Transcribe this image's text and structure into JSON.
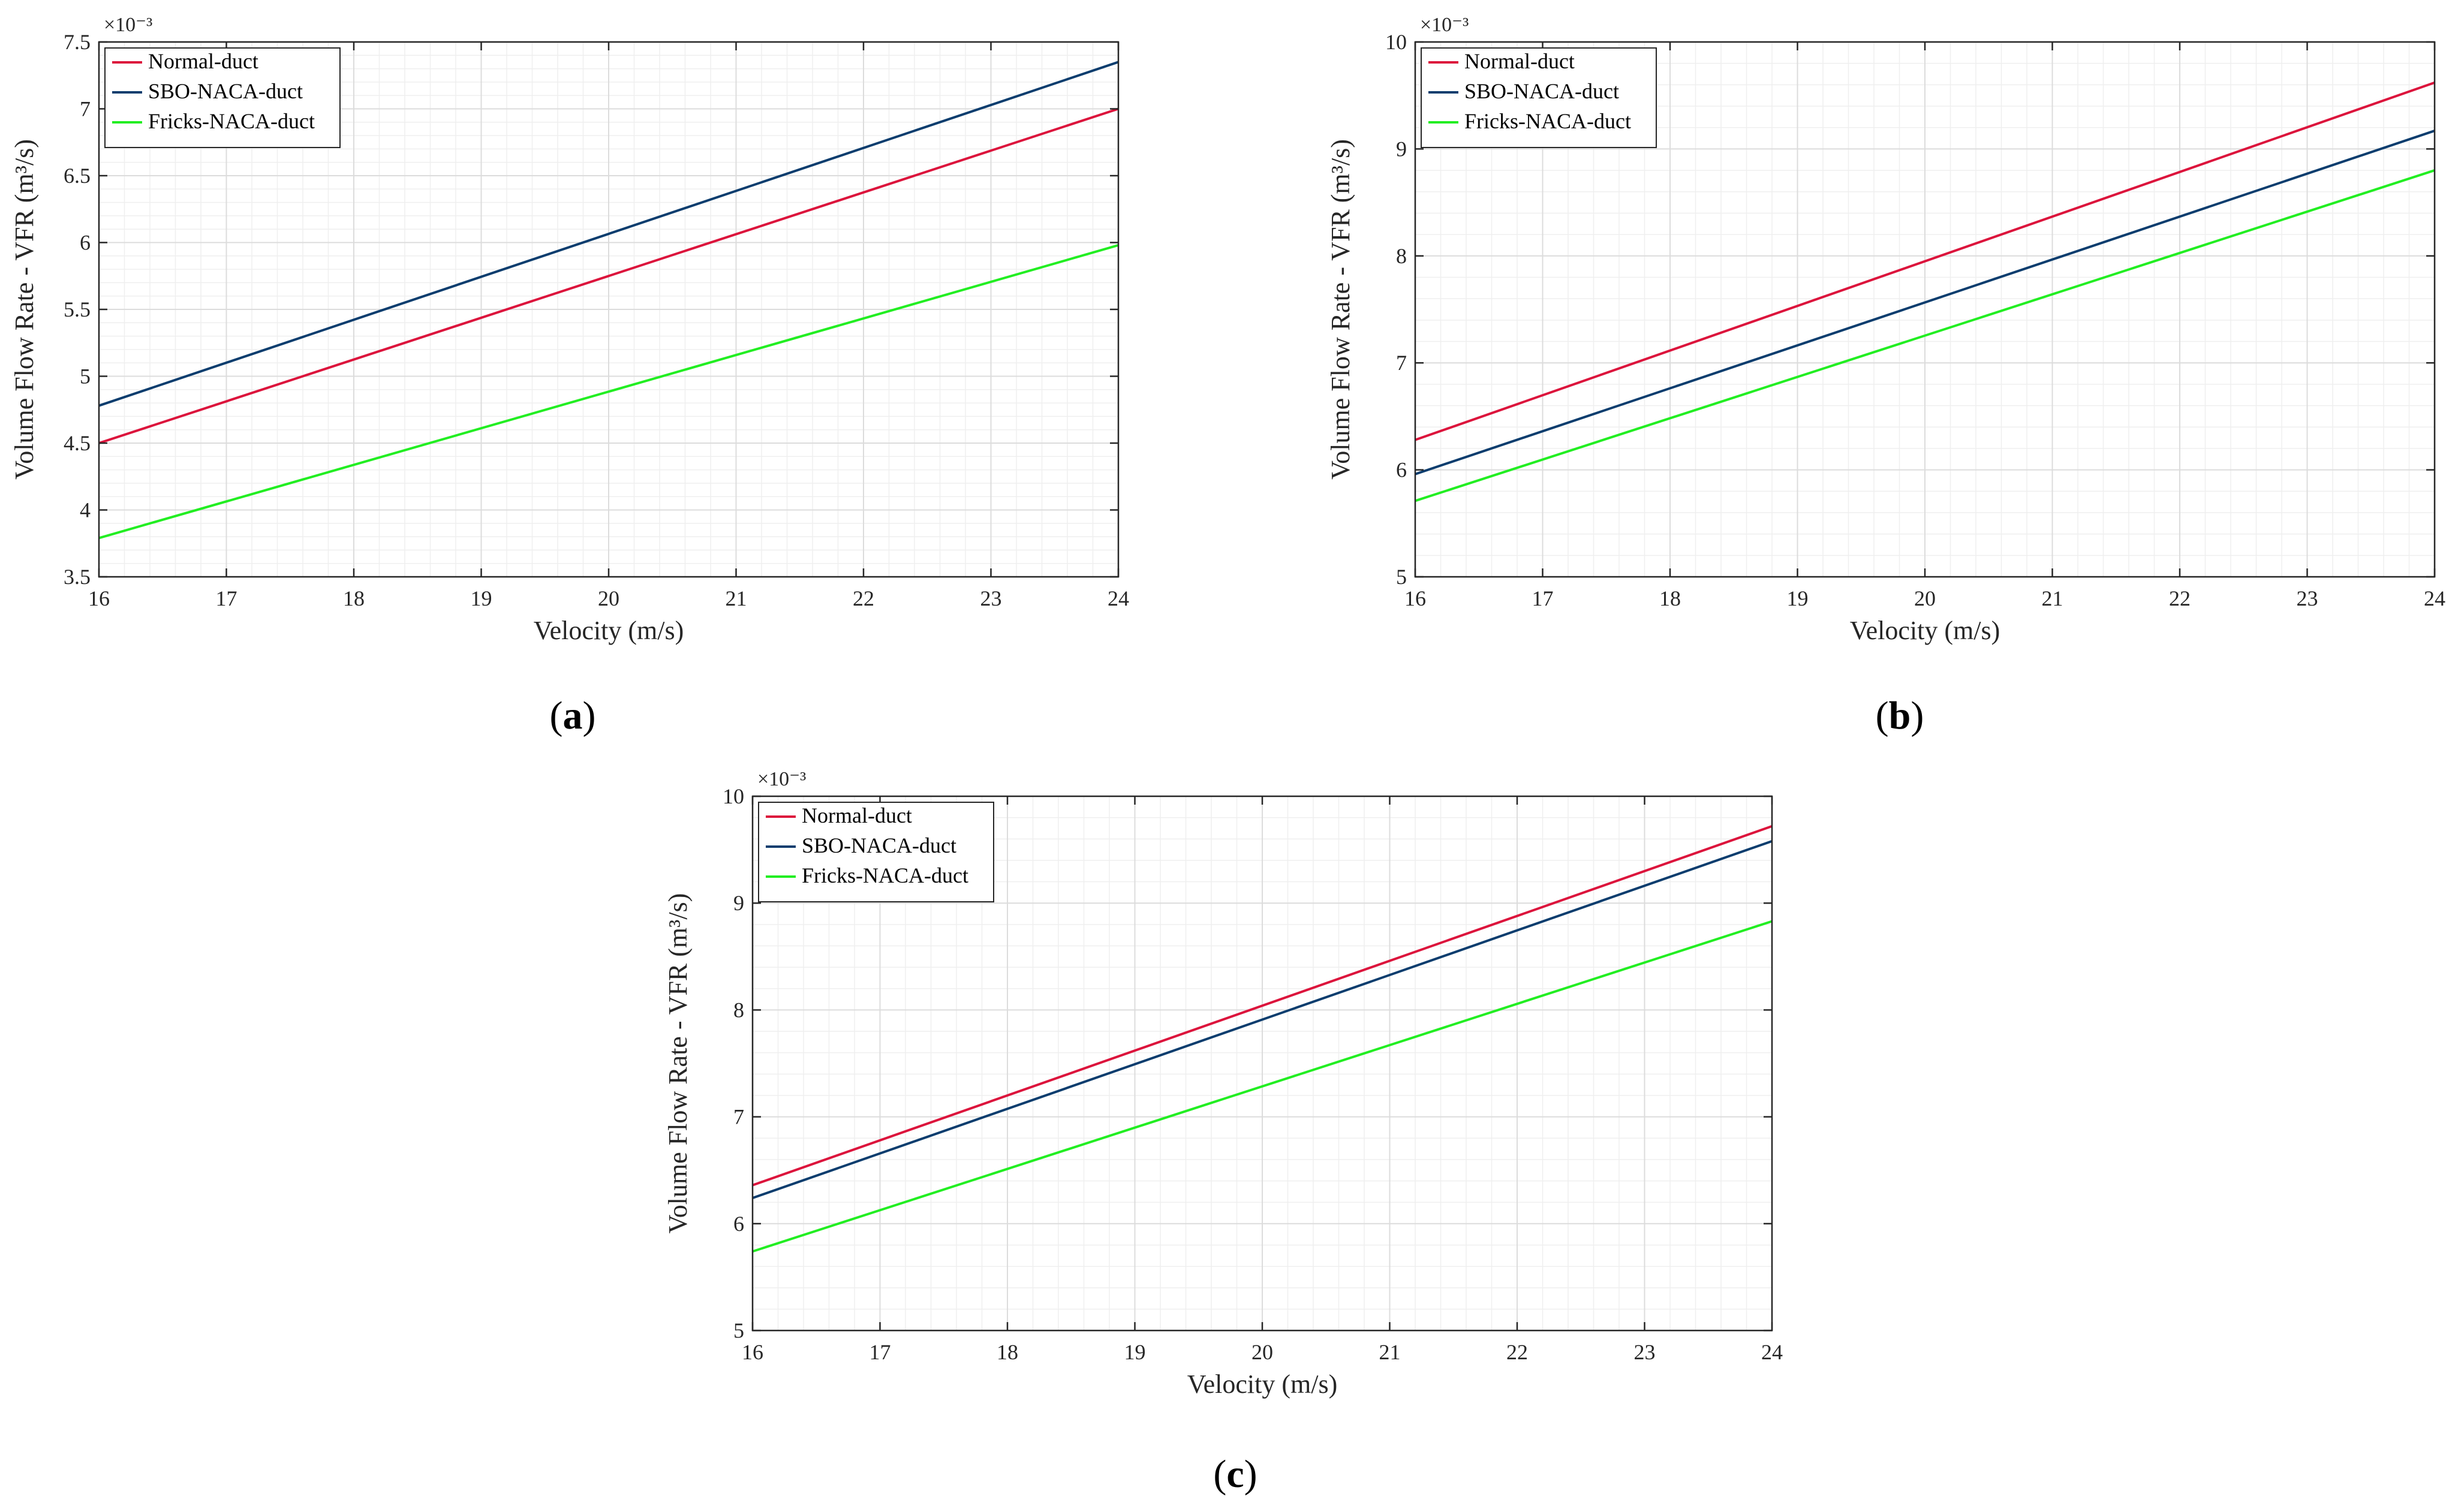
{
  "colors": {
    "normal": "#dc143c",
    "sbo": "#0b3d6e",
    "fricks": "#22ee22",
    "axis": "#262626",
    "grid_major": "#dcdcdc",
    "grid_minor": "#efefef"
  },
  "chart_data": [
    {
      "type": "line",
      "caption": {
        "open": "(",
        "letter": "a",
        "close": ")"
      },
      "xlabel": "Velocity (m/s)",
      "ylabel": "Volume Flow Rate - VFR (m³/s)",
      "multiplier": "×10⁻³",
      "xlim": [
        16,
        24
      ],
      "ylim": [
        3.5,
        7.5
      ],
      "xticks": [
        "16",
        "17",
        "18",
        "19",
        "20",
        "21",
        "22",
        "23",
        "24"
      ],
      "yticks": [
        "3.5",
        "4",
        "4.5",
        "5",
        "5.5",
        "6",
        "6.5",
        "7",
        "7.5"
      ],
      "grid": true,
      "legend_position": "top-left",
      "series": [
        {
          "name": "Normal-duct",
          "color_key": "normal",
          "x": [
            16,
            24
          ],
          "y": [
            4.5,
            7.0
          ]
        },
        {
          "name": "SBO-NACA-duct",
          "color_key": "sbo",
          "x": [
            16,
            24
          ],
          "y": [
            4.78,
            7.35
          ]
        },
        {
          "name": "Fricks-NACA-duct",
          "color_key": "fricks",
          "x": [
            16,
            24
          ],
          "y": [
            3.79,
            5.98
          ]
        }
      ]
    },
    {
      "type": "line",
      "caption": {
        "open": "(",
        "letter": "b",
        "close": ")"
      },
      "xlabel": "Velocity (m/s)",
      "ylabel": "Volume Flow Rate - VFR (m³/s)",
      "multiplier": "×10⁻³",
      "xlim": [
        16,
        24
      ],
      "ylim": [
        5,
        10
      ],
      "xticks": [
        "16",
        "17",
        "18",
        "19",
        "20",
        "21",
        "22",
        "23",
        "24"
      ],
      "yticks": [
        "5",
        "6",
        "7",
        "8",
        "9",
        "10"
      ],
      "grid": true,
      "legend_position": "top-left",
      "series": [
        {
          "name": "Normal-duct",
          "color_key": "normal",
          "x": [
            16,
            24
          ],
          "y": [
            6.28,
            9.62
          ]
        },
        {
          "name": "SBO-NACA-duct",
          "color_key": "sbo",
          "x": [
            16,
            24
          ],
          "y": [
            5.96,
            9.17
          ]
        },
        {
          "name": "Fricks-NACA-duct",
          "color_key": "fricks",
          "x": [
            16,
            24
          ],
          "y": [
            5.71,
            8.8
          ]
        }
      ]
    },
    {
      "type": "line",
      "caption": {
        "open": "(",
        "letter": "c",
        "close": ")"
      },
      "xlabel": "Velocity (m/s)",
      "ylabel": "Volume Flow Rate - VFR (m³/s)",
      "multiplier": "×10⁻³",
      "xlim": [
        16,
        24
      ],
      "ylim": [
        5,
        10
      ],
      "xticks": [
        "16",
        "17",
        "18",
        "19",
        "20",
        "21",
        "22",
        "23",
        "24"
      ],
      "yticks": [
        "5",
        "6",
        "7",
        "8",
        "9",
        "10"
      ],
      "grid": true,
      "legend_position": "top-left",
      "series": [
        {
          "name": "Normal-duct",
          "color_key": "normal",
          "x": [
            16,
            24
          ],
          "y": [
            6.36,
            9.72
          ]
        },
        {
          "name": "SBO-NACA-duct",
          "color_key": "sbo",
          "x": [
            16,
            24
          ],
          "y": [
            6.24,
            9.58
          ]
        },
        {
          "name": "Fricks-NACA-duct",
          "color_key": "fricks",
          "x": [
            16,
            24
          ],
          "y": [
            5.74,
            8.83
          ]
        }
      ]
    }
  ]
}
